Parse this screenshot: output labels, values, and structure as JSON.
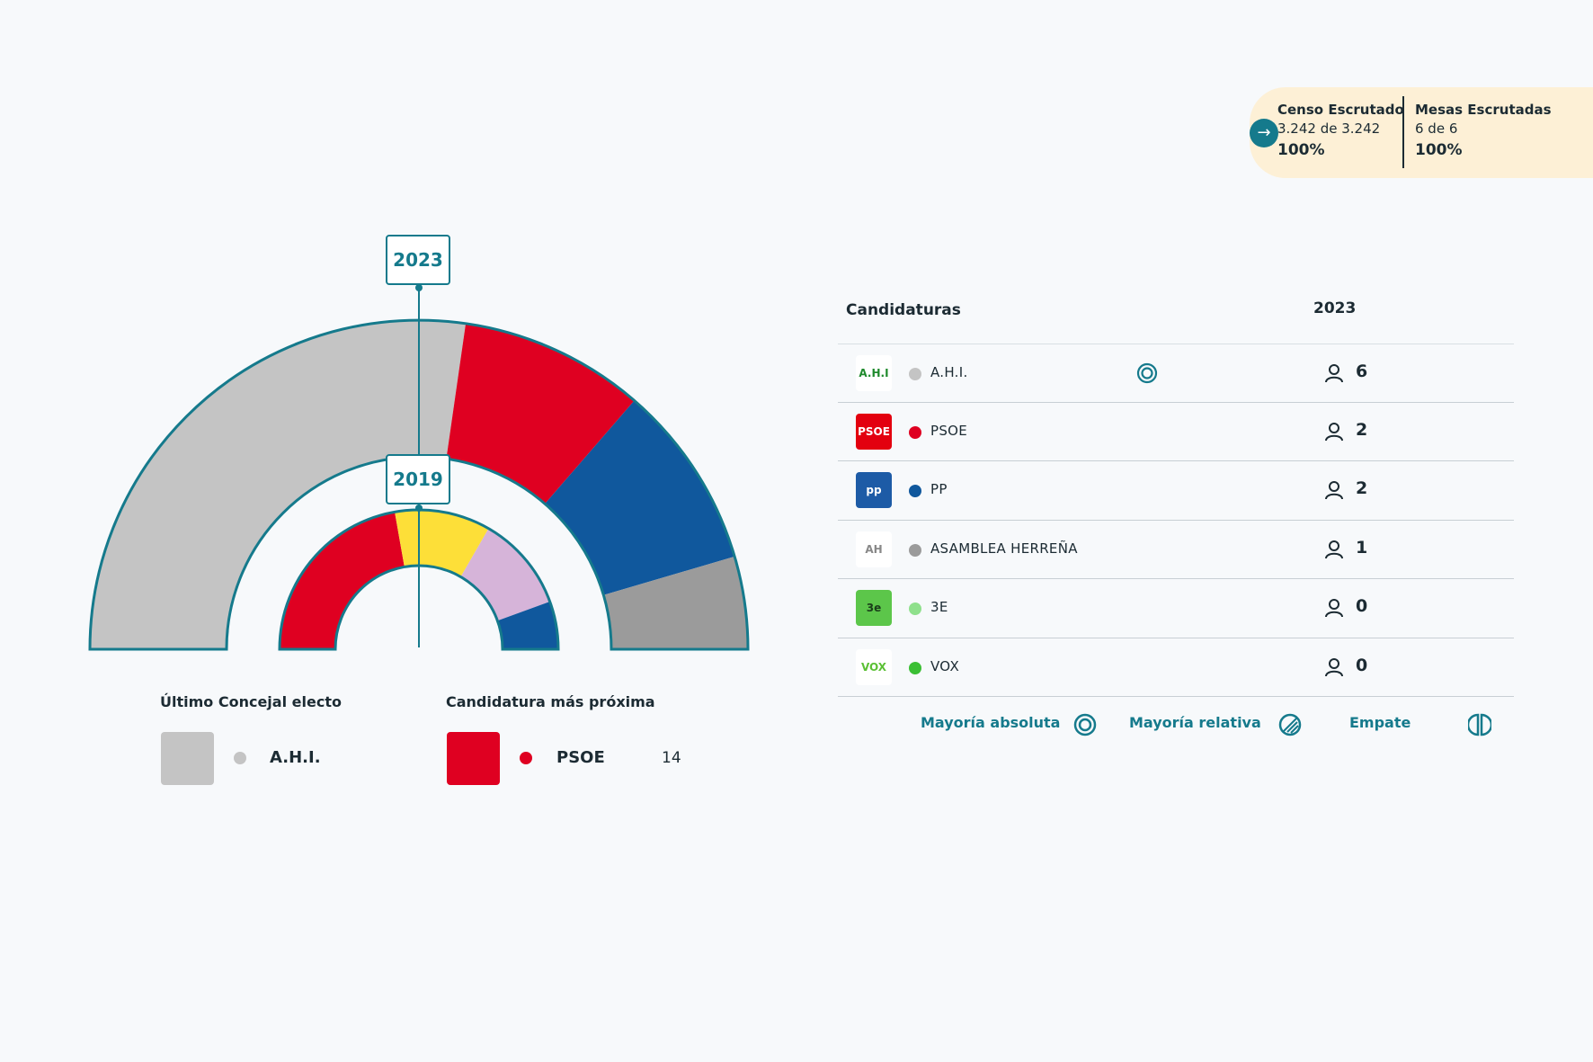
{
  "scrutiny": {
    "census_label": "Censo Escrutado",
    "census_value": "3.242 de 3.242",
    "census_pct": "100%",
    "tables_label": "Mesas Escrutadas",
    "tables_value": "6 de 6",
    "tables_pct": "100%"
  },
  "chart_data": [
    {
      "type": "pie",
      "name": "2023",
      "title": "2023",
      "slices": [
        {
          "party": "A.H.I.",
          "seats": 6,
          "color": "#c4c4c4"
        },
        {
          "party": "PSOE",
          "seats": 2,
          "color": "#df0021"
        },
        {
          "party": "PP",
          "seats": 2,
          "color": "#10589d"
        },
        {
          "party": "ASAMBLEA HERREÑA",
          "seats": 1,
          "color": "#9b9b9b"
        }
      ]
    },
    {
      "type": "pie",
      "name": "2019",
      "title": "2019",
      "slices": [
        {
          "party": "PSOE",
          "seats": 4,
          "color": "#df0021"
        },
        {
          "party": "",
          "seats": 2,
          "color": "#fddf38"
        },
        {
          "party": "",
          "seats": 2,
          "color": "#d6b4d9"
        },
        {
          "party": "PP",
          "seats": 1,
          "color": "#10589d"
        }
      ]
    }
  ],
  "last_elected": {
    "label": "Último Concejal electo",
    "party": "A.H.I.",
    "color": "#c4c4c4"
  },
  "next_candidate": {
    "label": "Candidatura más próxima",
    "party": "PSOE",
    "color": "#df0021",
    "votes": "14"
  },
  "table": {
    "header_party": "Candidaturas",
    "header_year": "2023",
    "rows": [
      {
        "name": "A.H.I.",
        "color": "#c4c4c4",
        "seats": "6",
        "majority": true,
        "logo_text": "A.H.I",
        "logo_bg": "#ffffff",
        "logo_fg": "#1f8a2d"
      },
      {
        "name": "PSOE",
        "color": "#df0021",
        "seats": "2",
        "majority": false,
        "logo_text": "PSOE",
        "logo_bg": "#e3000f",
        "logo_fg": "#ffffff"
      },
      {
        "name": "PP",
        "color": "#10589d",
        "seats": "2",
        "majority": false,
        "logo_text": "pp",
        "logo_bg": "#1d5ba6",
        "logo_fg": "#ffffff"
      },
      {
        "name": "ASAMBLEA HERREÑA",
        "color": "#9b9b9b",
        "seats": "1",
        "majority": false,
        "logo_text": "AH",
        "logo_bg": "#ffffff",
        "logo_fg": "#888888"
      },
      {
        "name": "3E",
        "color": "#8fe08c",
        "seats": "0",
        "majority": false,
        "logo_text": "3e",
        "logo_bg": "#5cc64a",
        "logo_fg": "#1a3d1a"
      },
      {
        "name": "VOX",
        "color": "#3bbf34",
        "seats": "0",
        "majority": false,
        "logo_text": "VOX",
        "logo_bg": "#ffffff",
        "logo_fg": "#5bc035"
      }
    ]
  },
  "legend": {
    "absolute": "Mayoría absoluta",
    "relative": "Mayoría relativa",
    "tie": "Empate"
  },
  "icons": [
    "arrow-right-icon",
    "person-icon",
    "absolute-majority-icon",
    "relative-majority-icon",
    "tie-icon"
  ]
}
